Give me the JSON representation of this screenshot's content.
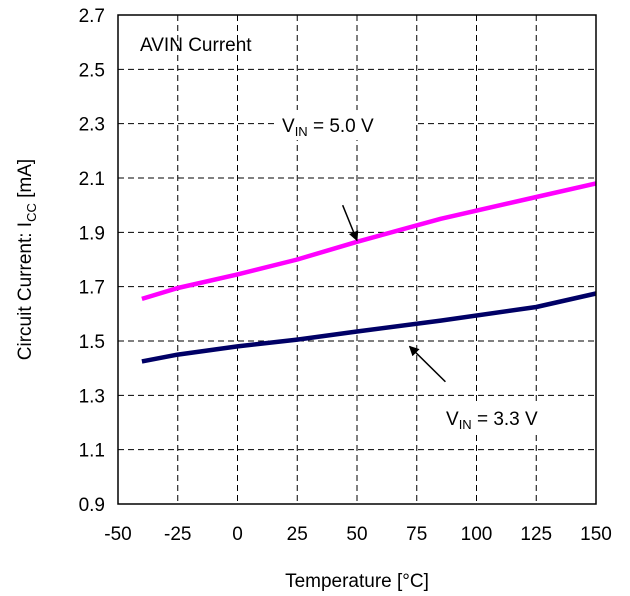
{
  "chart_data": {
    "type": "line",
    "title": "AVIN Current",
    "xlabel": "Temperature [°C]",
    "ylabel": {
      "main": "Circuit Current: I",
      "sub": "CC",
      "unit": " [mA]"
    },
    "xlim": [
      -50,
      150
    ],
    "ylim": [
      0.9,
      2.7
    ],
    "xticks": [
      "-50",
      "-25",
      "0",
      "25",
      "50",
      "75",
      "100",
      "125",
      "150"
    ],
    "yticks": [
      "0.9",
      "1.1",
      "1.3",
      "1.5",
      "1.7",
      "1.9",
      "2.1",
      "2.3",
      "2.5",
      "2.7"
    ],
    "grid": true,
    "series": [
      {
        "color": "#ff00ff",
        "x": [
          -40,
          -25,
          0,
          25,
          50,
          85,
          125,
          150
        ],
        "y": [
          1.655,
          1.695,
          1.745,
          1.8,
          1.865,
          1.95,
          2.03,
          2.08
        ]
      },
      {
        "color": "#000066",
        "x": [
          -40,
          -25,
          0,
          25,
          50,
          85,
          125,
          150
        ],
        "y": [
          1.425,
          1.45,
          1.48,
          1.505,
          1.535,
          1.575,
          1.625,
          1.675
        ]
      }
    ],
    "annotations": [
      {
        "pre": "V",
        "sub": "IN",
        "post": " = 5.0 V",
        "arrow_from": [
          44,
          2.0
        ],
        "arrow_to": [
          50,
          1.87
        ]
      },
      {
        "pre": "V",
        "sub": "IN",
        "post": " = 3.3 V",
        "arrow_from": [
          87,
          1.35
        ],
        "arrow_to": [
          72,
          1.48
        ]
      }
    ]
  }
}
